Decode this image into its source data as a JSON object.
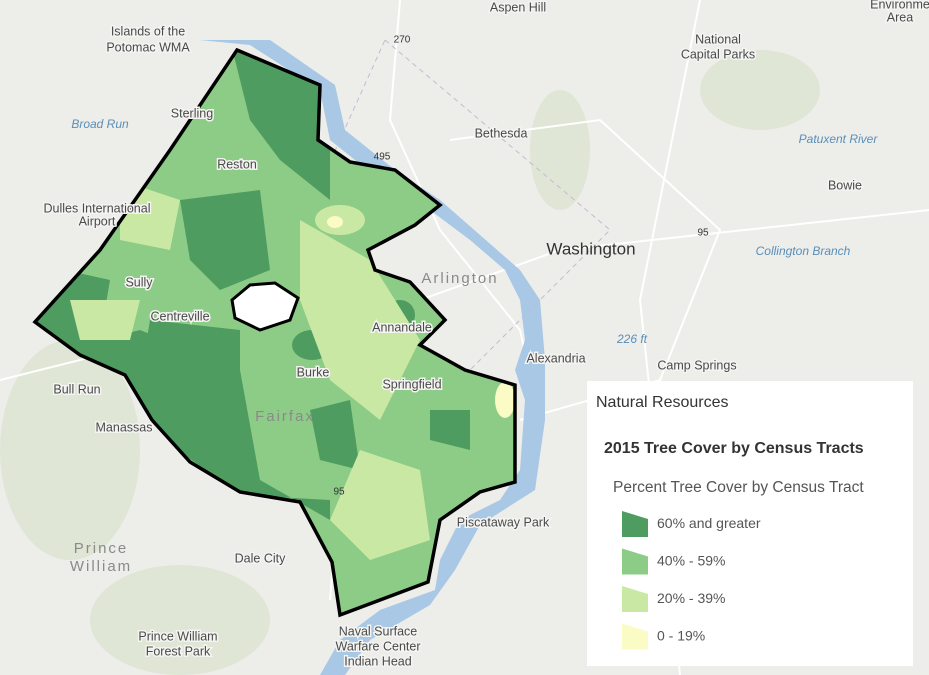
{
  "map": {
    "labels": [
      "Islands of the",
      "Potomac WMA",
      "Aspen Hill",
      "270",
      "National",
      "Capital Parks",
      "Sterling",
      "Broad Run",
      "Bethesda",
      "Reston",
      "495",
      "Patuxent River",
      "Bowie",
      "Dulles International",
      "Airport",
      "Washington",
      "95",
      "Arlington",
      "Collington Branch",
      "Sully",
      "Centreville",
      "Annandale",
      "226 ft",
      "Alexandria",
      "Camp Springs",
      "Bull Run",
      "Burke",
      "Springfield",
      "Manassas",
      "Fairfax",
      "95",
      "Piscataway Park",
      "Prince",
      "William",
      "Dale City",
      "Naval Surface",
      "Warfare Center",
      "Indian Head",
      "Prince William",
      "Forest Park",
      "Environme",
      "Area"
    ]
  },
  "legend": {
    "title": "Natural Resources",
    "layer": "2015 Tree Cover by Census Tracts",
    "field": "Percent Tree Cover by Census Tract",
    "items": [
      {
        "label": "60% and greater",
        "color": "#4e9c60"
      },
      {
        "label": "40% - 59%",
        "color": "#8dcc86"
      },
      {
        "label": "20% - 39%",
        "color": "#c9e8a4"
      },
      {
        "label": "0 - 19%",
        "color": "#fbfbc6"
      }
    ]
  }
}
